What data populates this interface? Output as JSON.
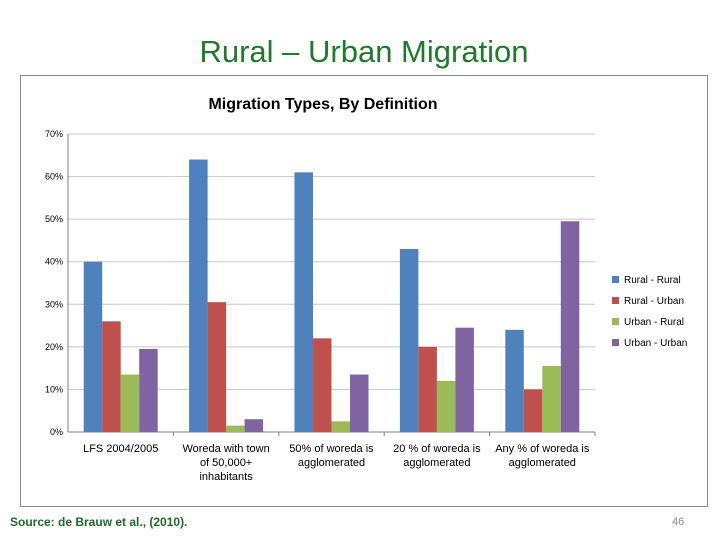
{
  "slide": {
    "title": "Rural – Urban Migration",
    "source": "Source: de Brauw et al., (2010).",
    "page_number": "46"
  },
  "chart_data": {
    "type": "bar",
    "title": "Migration Types, By Definition",
    "categories": [
      [
        "LFS 2004/2005"
      ],
      [
        "Woreda with town",
        "of 50,000+",
        "inhabitants"
      ],
      [
        "50% of woreda is",
        "agglomerated"
      ],
      [
        "20 % of woreda is",
        "agglomerated"
      ],
      [
        "Any % of woreda is",
        "agglomerated"
      ]
    ],
    "series": [
      {
        "name": "Rural - Rural",
        "color": "#4f81bd",
        "values": [
          40,
          64,
          61,
          43,
          24
        ]
      },
      {
        "name": "Rural - Urban",
        "color": "#c0504d",
        "values": [
          26,
          30.5,
          22,
          20,
          10
        ]
      },
      {
        "name": "Urban - Rural",
        "color": "#9bbb59",
        "values": [
          13.5,
          1.5,
          2.5,
          12,
          15.5
        ]
      },
      {
        "name": "Urban - Urban",
        "color": "#8064a2",
        "values": [
          19.5,
          3,
          13.5,
          24.5,
          49.5
        ]
      }
    ],
    "ylim": [
      0,
      70
    ],
    "yticks": [
      "0%",
      "10%",
      "20%",
      "30%",
      "40%",
      "50%",
      "60%",
      "70%"
    ],
    "grid": true,
    "legend": "right"
  }
}
